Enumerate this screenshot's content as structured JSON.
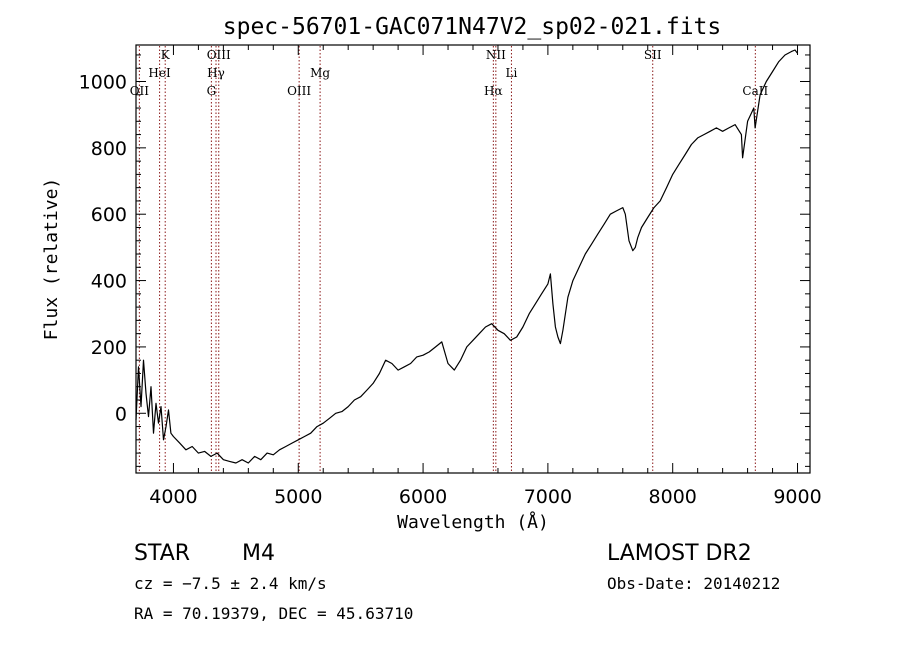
{
  "chart_data": {
    "type": "line",
    "title": "spec-56701-GAC071N47V2_sp02-021.fits",
    "xlabel": "Wavelength (Å)",
    "ylabel": "Flux (relative)",
    "xlim": [
      3700,
      9100
    ],
    "ylim": [
      -180,
      1110
    ],
    "xticks": [
      4000,
      5000,
      6000,
      7000,
      8000,
      9000
    ],
    "yticks": [
      0,
      200,
      400,
      600,
      800,
      1000
    ],
    "grid": false,
    "series": [
      {
        "x": [
          3700,
          3720,
          3740,
          3760,
          3780,
          3800,
          3820,
          3840,
          3860,
          3880,
          3900,
          3920,
          3940,
          3960,
          3980,
          4000,
          4050,
          4100,
          4150,
          4200,
          4250,
          4300,
          4350,
          4400,
          4450,
          4500,
          4550,
          4600,
          4650,
          4700,
          4750,
          4800,
          4850,
          4900,
          4950,
          5000,
          5050,
          5100,
          5150,
          5200,
          5250,
          5300,
          5350,
          5400,
          5450,
          5500,
          5550,
          5600,
          5650,
          5700,
          5750,
          5800,
          5850,
          5900,
          5950,
          6000,
          6050,
          6100,
          6150,
          6200,
          6250,
          6300,
          6350,
          6400,
          6450,
          6500,
          6550,
          6600,
          6650,
          6700,
          6750,
          6800,
          6850,
          6900,
          6950,
          7000,
          7020,
          7040,
          7060,
          7080,
          7100,
          7120,
          7140,
          7160,
          7200,
          7250,
          7300,
          7350,
          7400,
          7450,
          7500,
          7550,
          7600,
          7620,
          7650,
          7680,
          7700,
          7720,
          7750,
          7800,
          7850,
          7900,
          7950,
          8000,
          8050,
          8100,
          8150,
          8200,
          8250,
          8300,
          8350,
          8400,
          8450,
          8500,
          8550,
          8560,
          8600,
          8650,
          8660,
          8700,
          8750,
          8800,
          8850,
          8900,
          8950,
          8980,
          9000
        ],
        "y": [
          -20,
          140,
          20,
          160,
          60,
          -10,
          80,
          -60,
          30,
          -30,
          20,
          -80,
          -40,
          10,
          -60,
          -70,
          -90,
          -110,
          -100,
          -120,
          -115,
          -130,
          -120,
          -140,
          -145,
          -150,
          -140,
          -150,
          -130,
          -140,
          -120,
          -125,
          -110,
          -100,
          -90,
          -80,
          -70,
          -60,
          -40,
          -30,
          -15,
          0,
          5,
          20,
          40,
          50,
          70,
          90,
          120,
          160,
          150,
          130,
          140,
          150,
          170,
          175,
          185,
          200,
          215,
          150,
          130,
          160,
          200,
          220,
          240,
          260,
          270,
          250,
          240,
          220,
          230,
          260,
          300,
          330,
          360,
          390,
          420,
          330,
          260,
          230,
          210,
          250,
          300,
          350,
          400,
          440,
          480,
          510,
          540,
          570,
          600,
          610,
          620,
          600,
          520,
          490,
          500,
          530,
          560,
          590,
          620,
          640,
          680,
          720,
          750,
          780,
          810,
          830,
          840,
          850,
          860,
          850,
          860,
          870,
          840,
          770,
          880,
          920,
          860,
          960,
          1000,
          1030,
          1060,
          1080,
          1090,
          1095,
          1085
        ]
      }
    ],
    "lines": [
      {
        "name": "OII",
        "x": 3727
      },
      {
        "name": "K",
        "x": 3934
      },
      {
        "name": "HeI",
        "x": 3889
      },
      {
        "name": "G",
        "x": 4304
      },
      {
        "name": "Hγ",
        "x": 4341
      },
      {
        "name": "OIII",
        "x": 4363
      },
      {
        "name": "OIII",
        "x": 5007
      },
      {
        "name": "Mg",
        "x": 5175
      },
      {
        "name": "Hα",
        "x": 6563
      },
      {
        "name": "NII",
        "x": 6583
      },
      {
        "name": "Li",
        "x": 6708
      },
      {
        "name": "SII",
        "x": 7840
      },
      {
        "name": "CaII",
        "x": 8662
      }
    ]
  },
  "info": {
    "class": "STAR",
    "subclass": "M4",
    "survey": "LAMOST DR2",
    "cz": "cz = −7.5 ± 2.4 km/s",
    "obs_date": "Obs-Date: 20140212",
    "coords": "RA =  70.19379, DEC =  45.63710"
  },
  "colors": {
    "ink": "#000000",
    "line_marker": "#8b1a1a",
    "background": "#ffffff"
  }
}
